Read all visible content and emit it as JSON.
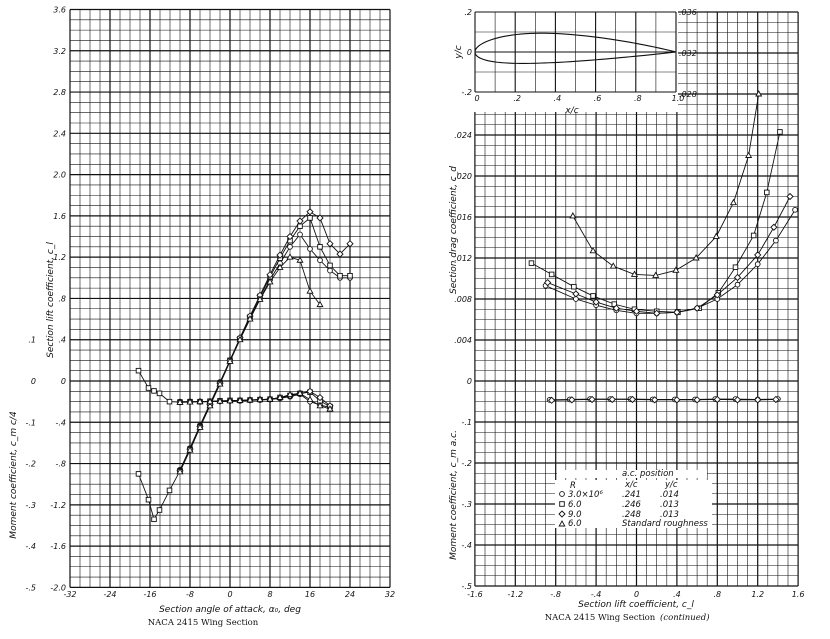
{
  "chart_data": [
    {
      "type": "line",
      "caption": "NACA 2415 Wing Section",
      "xlabel": "Section angle of attack, α₀, deg",
      "ylabel": "Section lift coefficient, c_l",
      "ylabel2": "Moment coefficient, c_m c/4",
      "xlim": [
        -32,
        32
      ],
      "ylim": [
        -2.0,
        3.6
      ],
      "y2lim": [
        -0.5,
        0.4
      ],
      "grid": true,
      "x_ticks": [
        "-32",
        "-24",
        "-16",
        "-8",
        "0",
        "8",
        "16",
        "24",
        "32"
      ],
      "y_ticks": [
        "3.6",
        "3.2",
        "2.8",
        "2.4",
        "2.0",
        "1.6",
        "1.2",
        ".8",
        ".4",
        "0",
        "-.4",
        "-.8",
        "-1.2",
        "-1.6",
        "-2.0"
      ],
      "y2_ticks": [
        ".1",
        "0",
        "-.1",
        "-.2",
        "-.3",
        "-.4",
        "-.5"
      ],
      "lift_series": [
        {
          "marker": "circle",
          "points": [
            [
              -10,
              -0.86
            ],
            [
              -8,
              -0.65
            ],
            [
              -6,
              -0.43
            ],
            [
              -4,
              -0.22
            ],
            [
              -2,
              -0.01
            ],
            [
              0,
              0.2
            ],
            [
              2,
              0.41
            ],
            [
              4,
              0.61
            ],
            [
              6,
              0.8
            ],
            [
              8,
              0.98
            ],
            [
              10,
              1.14
            ],
            [
              12,
              1.3
            ],
            [
              14,
              1.42
            ],
            [
              16,
              1.28
            ],
            [
              18,
              1.17
            ],
            [
              20,
              1.07
            ],
            [
              22,
              1.0
            ],
            [
              24,
              1.0
            ]
          ]
        },
        {
          "marker": "square",
          "points": [
            [
              -18.3,
              -0.9
            ],
            [
              -16.3,
              -1.15
            ],
            [
              -15.2,
              -1.34
            ],
            [
              -14.1,
              -1.25
            ],
            [
              -12.1,
              -1.06
            ],
            [
              -10,
              -0.87
            ],
            [
              -8,
              -0.66
            ],
            [
              -6,
              -0.44
            ],
            [
              -4,
              -0.23
            ],
            [
              -2,
              -0.02
            ],
            [
              0,
              0.2
            ],
            [
              2,
              0.41
            ],
            [
              4,
              0.62
            ],
            [
              6,
              0.82
            ],
            [
              8,
              1.01
            ],
            [
              10,
              1.19
            ],
            [
              12,
              1.36
            ],
            [
              14,
              1.5
            ],
            [
              16,
              1.58
            ],
            [
              18,
              1.3
            ],
            [
              20,
              1.12
            ],
            [
              22,
              1.02
            ],
            [
              24,
              1.02
            ]
          ]
        },
        {
          "marker": "diamond",
          "points": [
            [
              -10,
              -0.87
            ],
            [
              -8,
              -0.66
            ],
            [
              -6,
              -0.44
            ],
            [
              -4,
              -0.23
            ],
            [
              -2,
              -0.02
            ],
            [
              0,
              0.2
            ],
            [
              2,
              0.42
            ],
            [
              4,
              0.63
            ],
            [
              6,
              0.83
            ],
            [
              8,
              1.03
            ],
            [
              10,
              1.22
            ],
            [
              12,
              1.4
            ],
            [
              14,
              1.55
            ],
            [
              16,
              1.64
            ],
            [
              18,
              1.58
            ],
            [
              20,
              1.33
            ],
            [
              22,
              1.23
            ],
            [
              24,
              1.33
            ]
          ]
        },
        {
          "marker": "triangle",
          "points": [
            [
              -10,
              -0.88
            ],
            [
              -8,
              -0.67
            ],
            [
              -6,
              -0.45
            ],
            [
              -4,
              -0.24
            ],
            [
              -2,
              -0.03
            ],
            [
              0,
              0.19
            ],
            [
              2,
              0.4
            ],
            [
              4,
              0.6
            ],
            [
              6,
              0.79
            ],
            [
              8,
              0.96
            ],
            [
              10,
              1.1
            ],
            [
              12,
              1.2
            ],
            [
              14,
              1.17
            ],
            [
              16,
              0.87
            ],
            [
              18,
              0.74
            ]
          ]
        }
      ],
      "moment_series": [
        {
          "marker": "circle",
          "points": [
            [
              -10,
              -0.05
            ],
            [
              -8,
              -0.05
            ],
            [
              -6,
              -0.05
            ],
            [
              -4,
              -0.05
            ],
            [
              -2,
              -0.049
            ],
            [
              0,
              -0.048
            ],
            [
              2,
              -0.048
            ],
            [
              4,
              -0.047
            ],
            [
              6,
              -0.046
            ],
            [
              8,
              -0.045
            ],
            [
              10,
              -0.042
            ],
            [
              12,
              -0.038
            ],
            [
              14,
              -0.032
            ],
            [
              16,
              -0.05
            ],
            [
              18,
              -0.058
            ],
            [
              20,
              -0.064
            ]
          ]
        },
        {
          "marker": "square",
          "points": [
            [
              -18.3,
              0.025
            ],
            [
              -16.3,
              -0.017
            ],
            [
              -15.2,
              -0.024
            ],
            [
              -14.1,
              -0.03
            ],
            [
              -12.1,
              -0.05
            ],
            [
              -10,
              -0.051
            ],
            [
              -8,
              -0.05
            ],
            [
              -6,
              -0.05
            ],
            [
              -4,
              -0.049
            ],
            [
              -2,
              -0.048
            ],
            [
              0,
              -0.047
            ],
            [
              2,
              -0.047
            ],
            [
              4,
              -0.046
            ],
            [
              6,
              -0.045
            ],
            [
              8,
              -0.044
            ],
            [
              10,
              -0.04
            ],
            [
              12,
              -0.035
            ],
            [
              14,
              -0.03
            ],
            [
              16,
              -0.027
            ],
            [
              18,
              -0.048
            ],
            [
              20,
              -0.062
            ]
          ]
        },
        {
          "marker": "diamond",
          "points": [
            [
              -10,
              -0.051
            ],
            [
              -8,
              -0.05
            ],
            [
              -6,
              -0.05
            ],
            [
              -4,
              -0.05
            ],
            [
              -2,
              -0.049
            ],
            [
              0,
              -0.048
            ],
            [
              2,
              -0.047
            ],
            [
              4,
              -0.046
            ],
            [
              6,
              -0.045
            ],
            [
              8,
              -0.044
            ],
            [
              10,
              -0.041
            ],
            [
              12,
              -0.036
            ],
            [
              14,
              -0.03
            ],
            [
              16,
              -0.025
            ],
            [
              18,
              -0.04
            ],
            [
              20,
              -0.06
            ]
          ]
        },
        {
          "marker": "triangle",
          "points": [
            [
              -10,
              -0.052
            ],
            [
              -8,
              -0.051
            ],
            [
              -6,
              -0.05
            ],
            [
              -4,
              -0.05
            ],
            [
              -2,
              -0.049
            ],
            [
              0,
              -0.048
            ],
            [
              2,
              -0.047
            ],
            [
              4,
              -0.046
            ],
            [
              6,
              -0.045
            ],
            [
              8,
              -0.044
            ],
            [
              10,
              -0.04
            ],
            [
              12,
              -0.033
            ],
            [
              14,
              -0.03
            ],
            [
              16,
              -0.045
            ],
            [
              18,
              -0.06
            ],
            [
              20,
              -0.068
            ]
          ]
        }
      ]
    },
    {
      "type": "line",
      "caption": "NACA 2415 Wing Section",
      "caption_suffix": "(continued)",
      "xlabel": "Section lift coefficient, c_l",
      "ylabel": "Section drag coefficient, c_d",
      "ylabel2": "Moment coefficient, c_m a.c.",
      "xlim": [
        -1.6,
        1.6
      ],
      "ylim": [
        0,
        0.036
      ],
      "y2lim": [
        -0.5,
        0
      ],
      "grid": true,
      "x_ticks": [
        "-1.6",
        "-1.2",
        "-.8",
        "-.4",
        "0",
        ".4",
        ".8",
        "1.2",
        "1.6"
      ],
      "y_ticks": [
        ".024",
        ".020",
        ".016",
        ".012",
        ".008",
        ".004",
        "0"
      ],
      "y_ticks_upper": [
        ".036",
        ".032",
        ".028"
      ],
      "y2_ticks": [
        "-.1",
        "-.2",
        "-.3",
        "-.4",
        "-.5"
      ],
      "drag_series": [
        {
          "marker": "circle",
          "points": [
            [
              -0.9,
              0.0093
            ],
            [
              -0.6,
              0.008
            ],
            [
              -0.4,
              0.0074
            ],
            [
              -0.2,
              0.0069
            ],
            [
              0,
              0.0066
            ],
            [
              0.2,
              0.0066
            ],
            [
              0.4,
              0.0067
            ],
            [
              0.6,
              0.0071
            ],
            [
              0.8,
              0.008
            ],
            [
              1.0,
              0.0094
            ],
            [
              1.2,
              0.0114
            ],
            [
              1.38,
              0.0137
            ],
            [
              1.57,
              0.0167
            ]
          ]
        },
        {
          "marker": "square",
          "points": [
            [
              -1.04,
              0.0115
            ],
            [
              -0.84,
              0.0104
            ],
            [
              -0.62,
              0.0092
            ],
            [
              -0.43,
              0.0083
            ],
            [
              -0.22,
              0.0075
            ],
            [
              -0.02,
              0.007
            ],
            [
              0.2,
              0.0068
            ],
            [
              0.41,
              0.0067
            ],
            [
              0.62,
              0.0071
            ],
            [
              0.81,
              0.0086
            ],
            [
              0.98,
              0.0111
            ],
            [
              1.16,
              0.0142
            ],
            [
              1.29,
              0.0184
            ],
            [
              1.42,
              0.0243
            ]
          ]
        },
        {
          "marker": "diamond",
          "points": [
            [
              -0.88,
              0.0096
            ],
            [
              -0.6,
              0.0085
            ],
            [
              -0.4,
              0.0077
            ],
            [
              -0.2,
              0.0071
            ],
            [
              0,
              0.0068
            ],
            [
              0.2,
              0.0066
            ],
            [
              0.4,
              0.0067
            ],
            [
              0.6,
              0.0071
            ],
            [
              0.8,
              0.0084
            ],
            [
              1.0,
              0.0101
            ],
            [
              1.2,
              0.0123
            ],
            [
              1.36,
              0.015
            ],
            [
              1.52,
              0.018
            ]
          ]
        },
        {
          "marker": "triangle",
          "points": [
            [
              -0.63,
              0.0161
            ],
            [
              -0.43,
              0.0127
            ],
            [
              -0.23,
              0.0112
            ],
            [
              -0.02,
              0.0104
            ],
            [
              0.19,
              0.0103
            ],
            [
              0.39,
              0.0108
            ],
            [
              0.59,
              0.012
            ],
            [
              0.79,
              0.0141
            ],
            [
              0.96,
              0.0174
            ],
            [
              1.11,
              0.022
            ],
            [
              1.21,
              0.028
            ]
          ]
        }
      ],
      "moment_series": [
        {
          "marker": "circle",
          "points": [
            [
              -0.86,
              -0.046
            ],
            [
              -0.66,
              -0.045
            ],
            [
              -0.46,
              -0.044
            ],
            [
              -0.26,
              -0.044
            ],
            [
              -0.06,
              -0.044
            ],
            [
              0.16,
              -0.045
            ],
            [
              0.38,
              -0.045
            ],
            [
              0.58,
              -0.045
            ],
            [
              0.78,
              -0.044
            ],
            [
              0.98,
              -0.044
            ],
            [
              1.2,
              -0.045
            ],
            [
              1.4,
              -0.044
            ]
          ]
        },
        {
          "marker": "diamond",
          "points": [
            [
              -0.84,
              -0.047
            ],
            [
              -0.64,
              -0.046
            ],
            [
              -0.44,
              -0.045
            ],
            [
              -0.24,
              -0.045
            ],
            [
              -0.04,
              -0.045
            ],
            [
              0.18,
              -0.046
            ],
            [
              0.4,
              -0.046
            ],
            [
              0.6,
              -0.046
            ],
            [
              0.8,
              -0.045
            ],
            [
              1.0,
              -0.046
            ],
            [
              1.2,
              -0.046
            ],
            [
              1.38,
              -0.045
            ]
          ]
        }
      ],
      "inset": {
        "airfoil": "NACA 2415",
        "xlabel": "x/c",
        "ylabel": "y/c",
        "x_ticks": [
          "0",
          ".2",
          ".4",
          ".6",
          ".8",
          "1.0"
        ],
        "y_ticks": [
          ".2",
          "0",
          "-.2"
        ]
      },
      "legend": {
        "r_header": "R",
        "ac_header": "a.c. position",
        "xc_header": "x/c",
        "yc_header": "y/c",
        "rows": [
          {
            "marker": "circle",
            "r": "3.0×10⁶",
            "xc": ".241",
            "yc": ".014"
          },
          {
            "marker": "square",
            "r": "6.0",
            "xc": ".246",
            "yc": ".013"
          },
          {
            "marker": "diamond",
            "r": "9.0",
            "xc": ".248",
            "yc": ".013"
          },
          {
            "marker": "triangle",
            "r": "6.0",
            "note": "Standard roughness"
          }
        ]
      }
    }
  ]
}
